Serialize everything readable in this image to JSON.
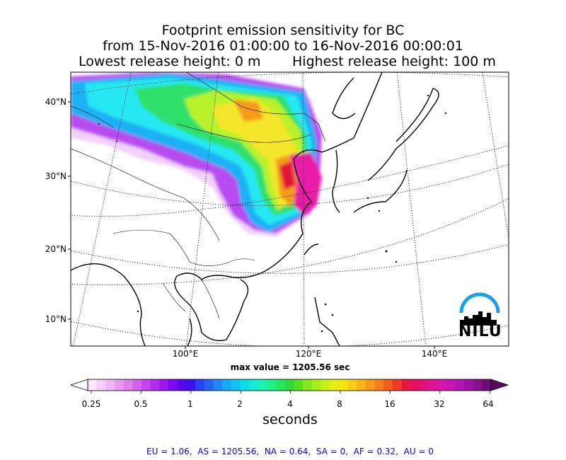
{
  "title": {
    "line1": "Footprint emission sensitivity for BC",
    "line2": "from 15-Nov-2016 01:00:00 to 16-Nov-2016 00:00:01",
    "lowest": "Lowest release height: 0 m",
    "highest": "Highest release height: 100 m"
  },
  "lat_labels": [
    "40°N",
    "30°N",
    "20°N",
    "10°N"
  ],
  "lon_labels": [
    "100°E",
    "120°E",
    "140°E"
  ],
  "max_value": "max value = 1205.56 sec",
  "colorbar": {
    "tick_labels": [
      "0.25",
      "0.5",
      "1",
      "2",
      "4",
      "8",
      "16",
      "32",
      "64"
    ],
    "unit": "seconds"
  },
  "footer": "EU = 1.06,  AS = 1205.56,  NA = 0.64,  SA = 0,  AF = 0.32,  AU = 0",
  "logo": {
    "text": "NILU",
    "icon": "nilu-skyline-logo"
  }
}
